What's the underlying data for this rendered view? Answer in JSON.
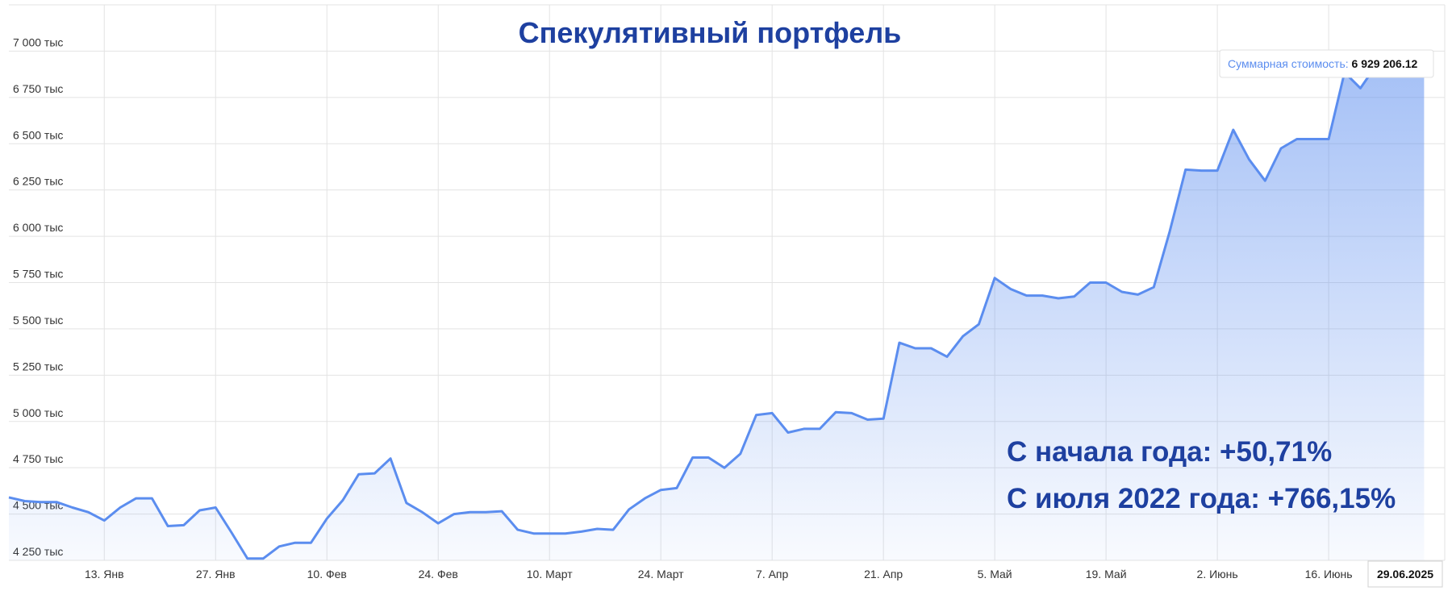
{
  "chart_data": {
    "type": "line",
    "title": "Спекулятивный портфель",
    "annotations": [
      "С начала года: +50,71%",
      "С июля 2022 года: +766,15%"
    ],
    "tooltip": {
      "label": "Суммарная стоимость:",
      "value": "6 929 206.12"
    },
    "crosshair_date": "29.06.2025",
    "color": "#5b8def",
    "grid": true,
    "categories": [
      null,
      null,
      null,
      null,
      null,
      null,
      "13. Янв",
      null,
      null,
      null,
      null,
      null,
      null,
      "27. Янв",
      null,
      null,
      null,
      null,
      null,
      null,
      "10. Фев",
      null,
      null,
      null,
      null,
      null,
      null,
      "24. Фев",
      null,
      null,
      null,
      null,
      null,
      null,
      "10. Март",
      null,
      null,
      null,
      null,
      null,
      null,
      "24. Март",
      null,
      null,
      null,
      null,
      null,
      null,
      "7. Апр",
      null,
      null,
      null,
      null,
      null,
      null,
      "21. Апр",
      null,
      null,
      null,
      null,
      null,
      null,
      "5. Май",
      null,
      null,
      null,
      null,
      null,
      null,
      "19. Май",
      null,
      null,
      null,
      null,
      null,
      null,
      "2. Июнь",
      null,
      null,
      null,
      null,
      null,
      null,
      "16. Июнь",
      null,
      null,
      null,
      null,
      null,
      null
    ],
    "values": [
      4590000,
      4570000,
      4565000,
      4565000,
      4535000,
      4510000,
      4465000,
      4535000,
      4585000,
      4585000,
      4435000,
      4440000,
      4520000,
      4535000,
      4400000,
      4260000,
      4260000,
      4325000,
      4345000,
      4345000,
      4475000,
      4575000,
      4715000,
      4720000,
      4800000,
      4560000,
      4510000,
      4450000,
      4500000,
      4510000,
      4510000,
      4515000,
      4415000,
      4395000,
      4395000,
      4395000,
      4405000,
      4420000,
      4415000,
      4525000,
      4585000,
      4630000,
      4640000,
      4805000,
      4805000,
      4750000,
      4825000,
      5035000,
      5045000,
      4940000,
      4960000,
      4960000,
      5050000,
      5045000,
      5010000,
      5015000,
      5425000,
      5395000,
      5395000,
      5350000,
      5460000,
      5525000,
      5775000,
      5715000,
      5680000,
      5680000,
      5665000,
      5675000,
      5750000,
      5750000,
      5700000,
      5685000,
      5725000,
      6025000,
      6360000,
      6355000,
      6355000,
      6575000,
      6415000,
      6300000,
      6475000,
      6525000,
      6525000,
      6525000,
      6885000,
      6800000,
      6925000,
      6950000,
      6925000,
      6929206.12
    ],
    "ylim": [
      4250000,
      7250000
    ],
    "yticks": [
      {
        "value": 4250000,
        "label": "4 250 тыс"
      },
      {
        "value": 4500000,
        "label": "4 500 тыс"
      },
      {
        "value": 4750000,
        "label": "4 750 тыс"
      },
      {
        "value": 5000000,
        "label": "5 000 тыс"
      },
      {
        "value": 5250000,
        "label": "5 250 тыс"
      },
      {
        "value": 5500000,
        "label": "5 500 тыс"
      },
      {
        "value": 5750000,
        "label": "5 750 тыс"
      },
      {
        "value": 6000000,
        "label": "6 000 тыс"
      },
      {
        "value": 6250000,
        "label": "6 250 тыс"
      },
      {
        "value": 6500000,
        "label": "6 500 тыс"
      },
      {
        "value": 6750000,
        "label": "6 750 тыс"
      },
      {
        "value": 7000000,
        "label": "7 000 тыс"
      }
    ]
  }
}
